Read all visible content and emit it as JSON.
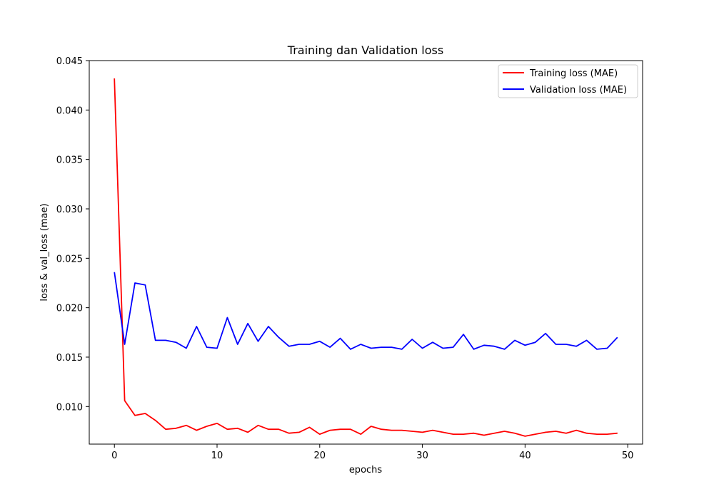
{
  "chart_data": {
    "type": "line",
    "title": "Training dan Validation loss",
    "xlabel": "epochs",
    "ylabel": "loss & val_loss (mae)",
    "xlim": [
      -2.45,
      51.45
    ],
    "ylim": [
      0.0062,
      0.045
    ],
    "xticks": [
      0,
      10,
      20,
      30,
      40,
      50
    ],
    "xtick_labels": [
      "0",
      "10",
      "20",
      "30",
      "40",
      "50"
    ],
    "yticks": [
      0.01,
      0.015,
      0.02,
      0.025,
      0.03,
      0.035,
      0.04,
      0.045
    ],
    "ytick_labels": [
      "0.010",
      "0.015",
      "0.020",
      "0.025",
      "0.030",
      "0.035",
      "0.040",
      "0.045"
    ],
    "grid": false,
    "legend_position": "top-right",
    "x": [
      0,
      1,
      2,
      3,
      4,
      5,
      6,
      7,
      8,
      9,
      10,
      11,
      12,
      13,
      14,
      15,
      16,
      17,
      18,
      19,
      20,
      21,
      22,
      23,
      24,
      25,
      26,
      27,
      28,
      29,
      30,
      31,
      32,
      33,
      34,
      35,
      36,
      37,
      38,
      39,
      40,
      41,
      42,
      43,
      44,
      45,
      46,
      47,
      48,
      49
    ],
    "series": [
      {
        "name": "Training loss (MAE)",
        "color": "#ff0000",
        "values": [
          0.0432,
          0.0106,
          0.0091,
          0.0093,
          0.0086,
          0.0077,
          0.0078,
          0.0081,
          0.0076,
          0.008,
          0.0083,
          0.0077,
          0.0078,
          0.0074,
          0.0081,
          0.0077,
          0.0077,
          0.0073,
          0.0074,
          0.0079,
          0.0072,
          0.0076,
          0.0077,
          0.0077,
          0.0072,
          0.008,
          0.0077,
          0.0076,
          0.0076,
          0.0075,
          0.0074,
          0.0076,
          0.0074,
          0.0072,
          0.0072,
          0.0073,
          0.0071,
          0.0073,
          0.0075,
          0.0073,
          0.007,
          0.0072,
          0.0074,
          0.0075,
          0.0073,
          0.0076,
          0.0073,
          0.0072,
          0.0072,
          0.0073
        ]
      },
      {
        "name": "Validation loss (MAE)",
        "color": "#0000ff",
        "values": [
          0.0236,
          0.0163,
          0.0225,
          0.0223,
          0.0167,
          0.0167,
          0.0165,
          0.0159,
          0.0181,
          0.016,
          0.0159,
          0.019,
          0.0163,
          0.0184,
          0.0166,
          0.0181,
          0.017,
          0.0161,
          0.0163,
          0.0163,
          0.0166,
          0.016,
          0.0169,
          0.0158,
          0.0163,
          0.0159,
          0.016,
          0.016,
          0.0158,
          0.0168,
          0.0159,
          0.0165,
          0.0159,
          0.016,
          0.0173,
          0.0158,
          0.0162,
          0.0161,
          0.0158,
          0.0167,
          0.0162,
          0.0165,
          0.0174,
          0.0163,
          0.0163,
          0.0161,
          0.0167,
          0.0158,
          0.0159,
          0.017
        ]
      }
    ]
  }
}
